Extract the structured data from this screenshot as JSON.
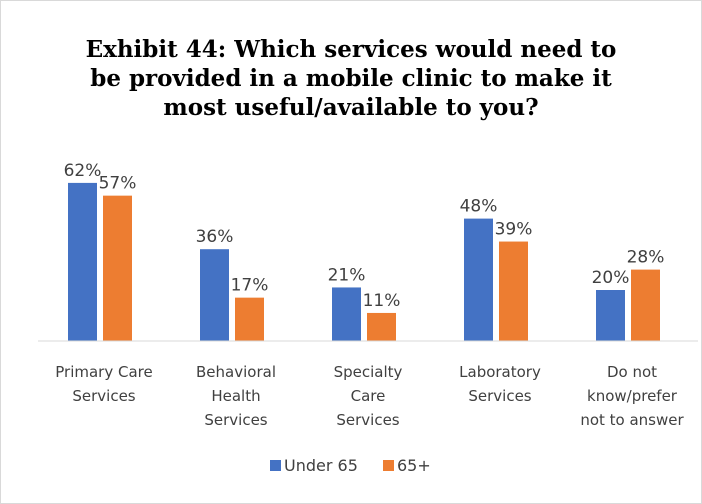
{
  "chart_data": {
    "type": "bar",
    "title_lines": [
      "Exhibit 44: Which services would need to",
      "be provided in a mobile clinic to make it",
      "most useful/available to you?"
    ],
    "categories": [
      [
        "Primary Care",
        "Services"
      ],
      [
        "Behavioral",
        "Health",
        "Services"
      ],
      [
        "Specialty",
        "Care",
        "Services"
      ],
      [
        "Laboratory",
        "Services"
      ],
      [
        "Do not",
        "know/prefer",
        "not to answer"
      ]
    ],
    "series": [
      {
        "name": "Under 65",
        "color": "#4472c4",
        "values": [
          62,
          36,
          21,
          48,
          20
        ]
      },
      {
        "name": "65+",
        "color": "#ed7d31",
        "values": [
          57,
          17,
          11,
          39,
          28
        ]
      }
    ],
    "data_labels": [
      [
        "62%",
        "36%",
        "21%",
        "48%",
        "20%"
      ],
      [
        "57%",
        "17%",
        "11%",
        "39%",
        "28%"
      ]
    ],
    "ylim": [
      0,
      70
    ],
    "grid": false,
    "legend": "bottom"
  }
}
